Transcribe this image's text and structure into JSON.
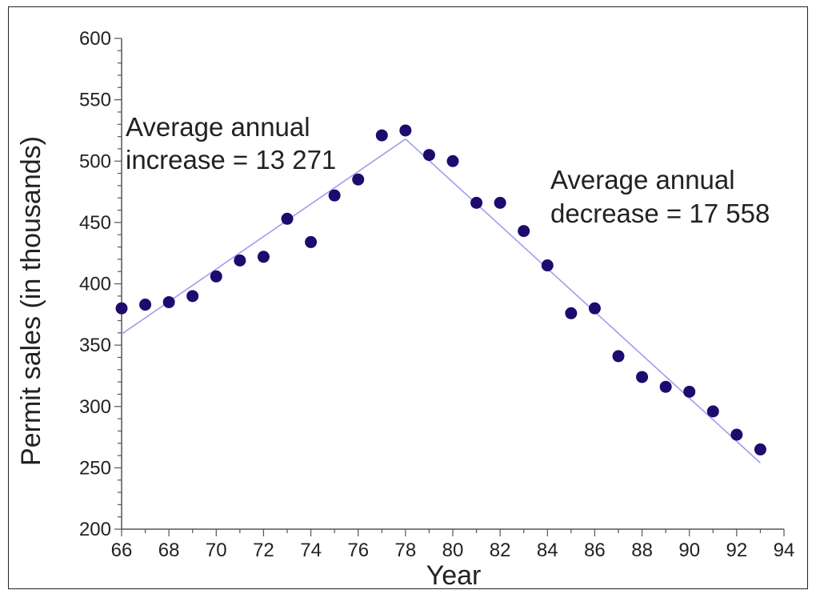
{
  "chart_data": {
    "type": "scatter",
    "xlabel": "Year",
    "ylabel": "Permit sales (in thousands)",
    "xlim": [
      66,
      94
    ],
    "ylim": [
      200,
      600
    ],
    "xticks": [
      "66",
      "68",
      "70",
      "72",
      "74",
      "76",
      "78",
      "80",
      "82",
      "84",
      "86",
      "88",
      "90",
      "92",
      "94"
    ],
    "yticks": [
      "200",
      "250",
      "300",
      "350",
      "400",
      "450",
      "500",
      "550",
      "600"
    ],
    "grid": false,
    "colors": {
      "point": "#1f0a6e",
      "trend": "#9d9df0",
      "axis": "#555555"
    },
    "series": [
      {
        "x": [
          66,
          67,
          68,
          69,
          70,
          71,
          72,
          73,
          74,
          75,
          76,
          77,
          78,
          79,
          80,
          81,
          82,
          83,
          84,
          85,
          86,
          87,
          88,
          89,
          90,
          91,
          92,
          93
        ],
        "values": [
          380,
          383,
          385,
          390,
          406,
          419,
          422,
          453,
          434,
          472,
          485,
          521,
          525,
          505,
          500,
          466,
          466,
          443,
          415,
          376,
          380,
          341,
          324,
          316,
          312,
          296,
          277,
          265
        ]
      }
    ],
    "trend_lines": [
      {
        "x": [
          66,
          78
        ],
        "values": [
          359,
          518
        ]
      },
      {
        "x": [
          78,
          93
        ],
        "values": [
          518,
          254
        ]
      }
    ],
    "annotations": [
      {
        "lines": [
          "Average annual",
          "increase = 13 271"
        ]
      },
      {
        "lines": [
          "Average annual",
          "decrease = 17 558"
        ]
      }
    ]
  }
}
